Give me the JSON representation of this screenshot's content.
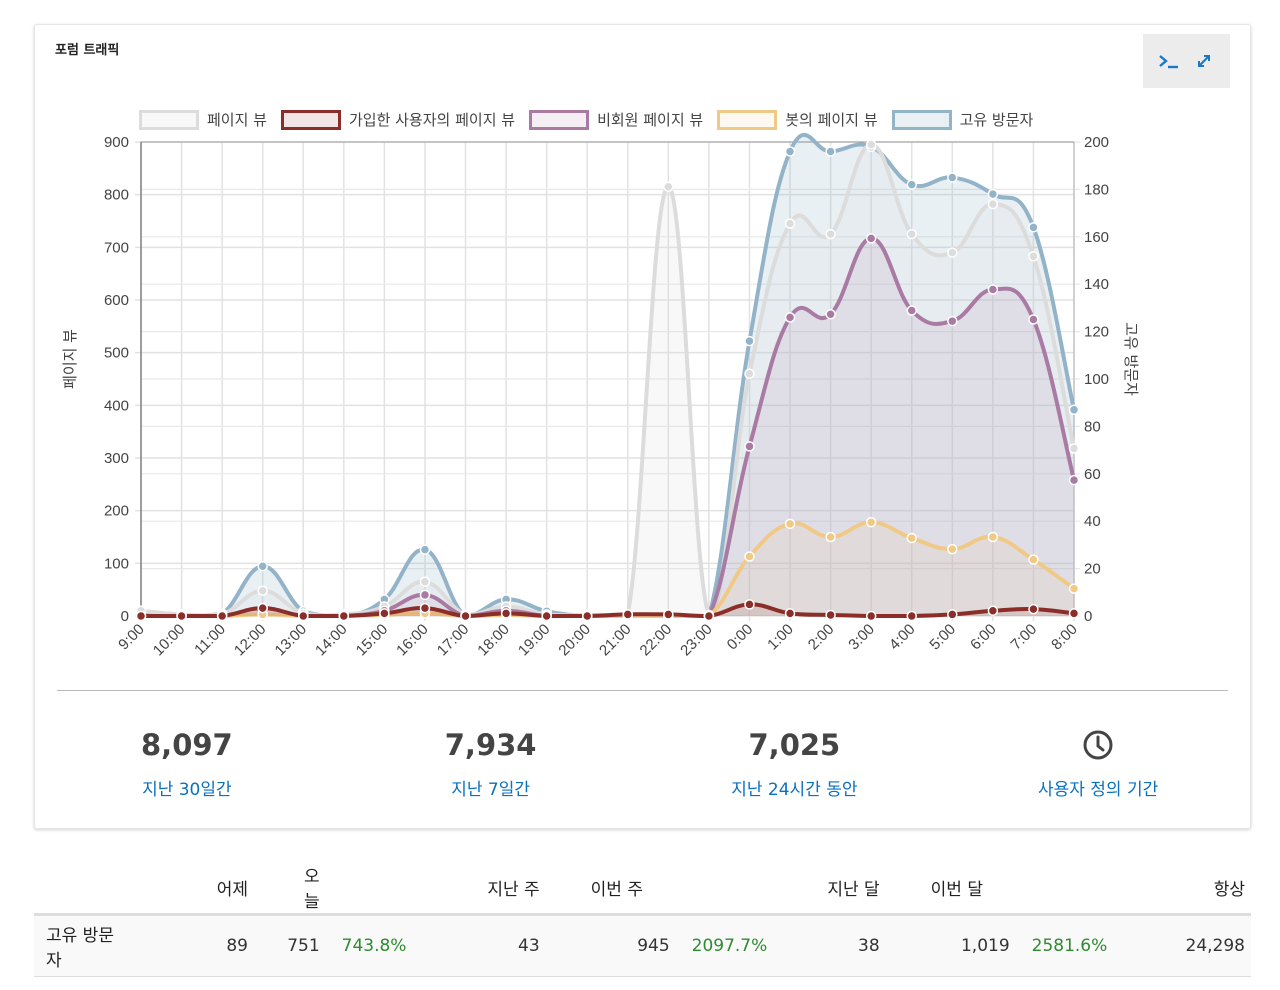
{
  "panel": {
    "title": "포럼 트래픽",
    "toolbar": [
      {
        "icon": "terminal-icon",
        "label": ">_"
      },
      {
        "icon": "expand-icon",
        "label": "expand"
      }
    ]
  },
  "chart_data": {
    "type": "line",
    "title": "포럼 트래픽",
    "x": [
      "9:00",
      "10:00",
      "11:00",
      "12:00",
      "13:00",
      "14:00",
      "15:00",
      "16:00",
      "17:00",
      "18:00",
      "19:00",
      "20:00",
      "21:00",
      "22:00",
      "23:00",
      "0:00",
      "1:00",
      "2:00",
      "3:00",
      "4:00",
      "5:00",
      "6:00",
      "7:00",
      "8:00"
    ],
    "ylabel": "페이지 뷰",
    "y2label": "고유 방문자",
    "ylim": [
      0,
      900
    ],
    "y2lim": [
      0,
      200
    ],
    "yticks": [
      0,
      100,
      200,
      300,
      400,
      500,
      600,
      700,
      800,
      900
    ],
    "y2ticks": [
      0,
      20,
      40,
      60,
      80,
      100,
      120,
      140,
      160,
      180,
      200
    ],
    "grid": true,
    "legend_position": "top",
    "series": [
      {
        "name": "페이지 뷰",
        "axis": "left",
        "color": "#dcdcdc",
        "fill": "rgba(220,220,220,0.2)",
        "values": [
          10,
          3,
          3,
          48,
          5,
          3,
          18,
          65,
          3,
          18,
          3,
          2,
          3,
          815,
          2,
          460,
          745,
          725,
          895,
          725,
          690,
          782,
          683,
          318
        ]
      },
      {
        "name": "가입한 사용자의 페이지 뷰",
        "axis": "left",
        "color": "#8b2e2a",
        "fill": "rgba(139,46,42,0.12)",
        "values": [
          0,
          0,
          0,
          15,
          0,
          0,
          5,
          15,
          0,
          5,
          0,
          0,
          3,
          3,
          0,
          22,
          5,
          2,
          0,
          0,
          3,
          10,
          13,
          5
        ]
      },
      {
        "name": "비회원 페이지 뷰",
        "axis": "left",
        "color": "#a97ba4",
        "fill": "rgba(169,123,164,0.12)",
        "values": [
          0,
          0,
          0,
          15,
          0,
          0,
          10,
          40,
          0,
          10,
          0,
          0,
          0,
          0,
          0,
          322,
          567,
          573,
          717,
          580,
          560,
          620,
          563,
          258
        ]
      },
      {
        "name": "봇의 페이지 뷰",
        "axis": "left",
        "color": "#f0c987",
        "fill": "rgba(240,201,135,0.12)",
        "values": [
          0,
          0,
          0,
          3,
          0,
          0,
          2,
          5,
          0,
          2,
          0,
          0,
          0,
          0,
          0,
          113,
          175,
          150,
          178,
          148,
          127,
          150,
          107,
          52
        ]
      },
      {
        "name": "고유 방문자",
        "axis": "right",
        "color": "#93b3c8",
        "fill": "rgba(147,179,200,0.2)",
        "values": [
          2,
          0,
          1,
          21,
          2,
          0,
          7,
          28,
          0,
          7,
          2,
          0,
          0,
          0,
          0,
          116,
          196,
          196,
          198,
          182,
          185,
          178,
          164,
          87
        ]
      }
    ]
  },
  "stats": [
    {
      "value": "8,097",
      "label": "지난 30일간"
    },
    {
      "value": "7,934",
      "label": "지난 7일간"
    },
    {
      "value": "7,025",
      "label": "지난 24시간 동안"
    },
    {
      "value": "",
      "label": "사용자 정의 기간",
      "icon": "clock-icon"
    }
  ],
  "table": {
    "headers": [
      "",
      "어제",
      "오늘",
      "",
      "지난 주",
      "이번 주",
      "",
      "지난 달",
      "이번 달",
      "",
      "항상"
    ],
    "rows": [
      {
        "label": "고유 방문자",
        "yesterday": "89",
        "today": "751",
        "today_change": "743.8%",
        "last_week": "43",
        "this_week": "945",
        "week_change": "2097.7%",
        "last_month": "38",
        "this_month": "1,019",
        "month_change": "2581.6%",
        "all_time": "24,298"
      }
    ]
  }
}
